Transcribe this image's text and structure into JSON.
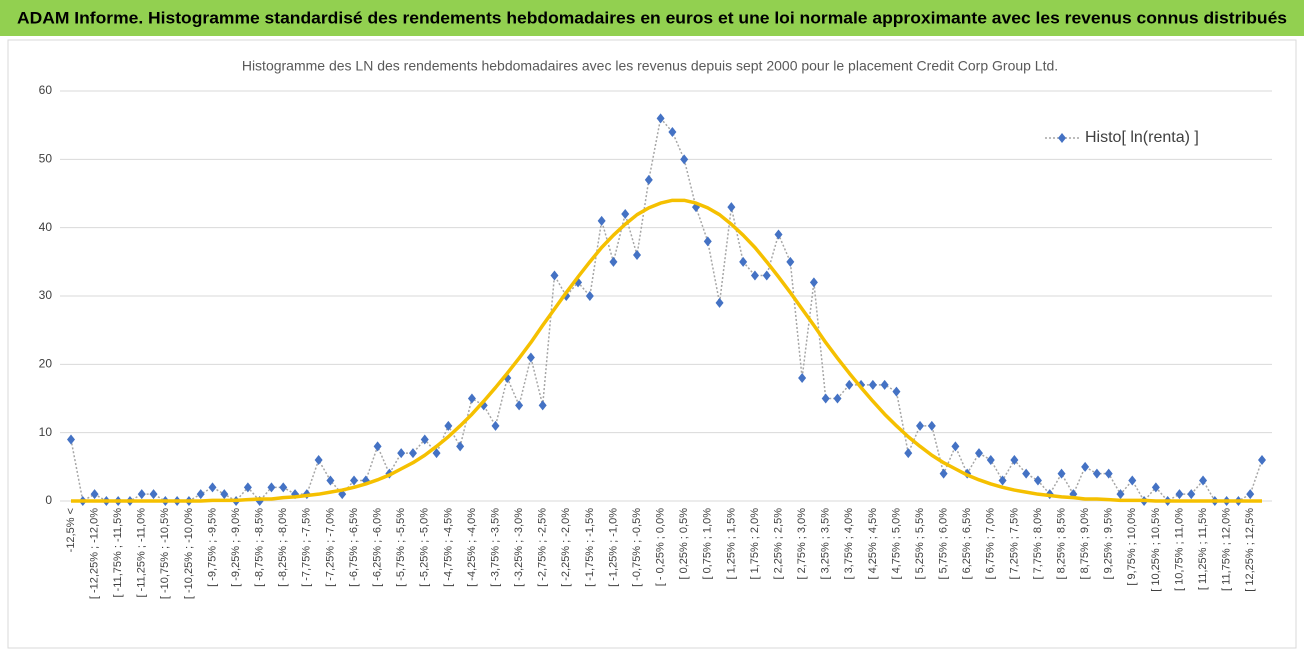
{
  "chart_data": {
    "type": "line",
    "title": "ADAM Informe. Histogramme standardisé des rendements hebdomadaires en euros et une loi normale approximante avec les revenus connus distribués",
    "subtitle": "Histogramme des LN des rendements hebdomadaires avec les revenus depuis sept 2000 pour le placement Credit Corp Group Ltd.",
    "categories": [
      "-12,5% <",
      null,
      "[ -12,25% ; -12,0%",
      null,
      "[ -11,75% ; -11,5%",
      null,
      "[ -11,25% ; -11,0%",
      null,
      "[ -10,75% ; -10,5%",
      null,
      "[ -10,25% ; -10,0%",
      null,
      "[ -9,75% ; -9,5%",
      null,
      "[ -9,25% ; -9,0%",
      null,
      "[ -8,75% ; -8,5%",
      null,
      "[ -8,25% ; -8,0%",
      null,
      "[ -7,75% ; -7,5%",
      null,
      "[ -7,25% ; -7,0%",
      null,
      "[ -6,75% ; -6,5%",
      null,
      "[ -6,25% ; -6,0%",
      null,
      "[ -5,75% ; -5,5%",
      null,
      "[ -5,25% ; -5,0%",
      null,
      "[ -4,75% ; -4,5%",
      null,
      "[ -4,25% ; -4,0%",
      null,
      "[ -3,75% ; -3,5%",
      null,
      "[ -3,25% ; -3,0%",
      null,
      "[ -2,75% ; -2,5%",
      null,
      "[ -2,25% ; -2,0%",
      null,
      "[ -1,75% ; -1,5%",
      null,
      "[ -1,25% ; -1,0%",
      null,
      "[ -0,75% ; -0,5%",
      null,
      "[ - 0,25% ; 0,0%",
      null,
      "[ 0,25% ; 0,5%",
      null,
      "[ 0,75% ; 1,0%",
      null,
      "[ 1,25% ; 1,5%",
      null,
      "[ 1,75% ; 2,0%",
      null,
      "[ 2,25% ; 2,5%",
      null,
      "[ 2,75% ; 3,0%",
      null,
      "[ 3,25% ; 3,5%",
      null,
      "[ 3,75% ; 4,0%",
      null,
      "[ 4,25% ; 4,5%",
      null,
      "[ 4,75% ; 5,0%",
      null,
      "[ 5,25% ; 5,5%",
      null,
      "[ 5,75% ; 6,0%",
      null,
      "[ 6,25% ; 6,5%",
      null,
      "[ 6,75% ; 7,0%",
      null,
      "[ 7,25% ; 7,5%",
      null,
      "[ 7,75% ; 8,0%",
      null,
      "[ 8,25% ; 8,5%",
      null,
      "[ 8,75% ; 9,0%",
      null,
      "[ 9,25% ; 9,5%",
      null,
      "[ 9,75% ; 10,0%",
      null,
      "[ 10,25% ; 10,5%",
      null,
      "[ 10,75% ; 11,0%",
      null,
      "[ 11,25% ; 11,5%",
      null,
      "[ 11,75% ; 12,0%",
      null,
      "[ 12,25% ; 12,5%",
      null
    ],
    "series": [
      {
        "name": "Histo[ ln(renta) ]",
        "color": "#4472c4",
        "line_color": "#a6a6a6",
        "marker": "diamond",
        "values": [
          9,
          0,
          1,
          0,
          0,
          0,
          1,
          1,
          0,
          0,
          0,
          1,
          2,
          1,
          0,
          2,
          0,
          2,
          2,
          1,
          1,
          6,
          3,
          1,
          3,
          3,
          8,
          4,
          7,
          7,
          9,
          7,
          11,
          8,
          15,
          14,
          11,
          18,
          14,
          21,
          14,
          33,
          30,
          32,
          30,
          41,
          35,
          42,
          36,
          47,
          56,
          54,
          50,
          43,
          38,
          29,
          43,
          35,
          33,
          33,
          39,
          35,
          18,
          32,
          15,
          15,
          17,
          17,
          17,
          17,
          16,
          7,
          11,
          11,
          4,
          8,
          4,
          7,
          6,
          3,
          6,
          4,
          3,
          1,
          4,
          1,
          5,
          4,
          4,
          1,
          3,
          0,
          2,
          0,
          1,
          1,
          3,
          0,
          0,
          0,
          1,
          6
        ]
      },
      {
        "color": "#f5c000",
        "values": [
          0,
          0,
          0,
          0,
          0,
          0,
          0,
          0,
          0,
          0,
          0,
          0,
          0.1,
          0.1,
          0.1,
          0.2,
          0.3,
          0.3,
          0.5,
          0.6,
          0.8,
          1.0,
          1.3,
          1.6,
          2.0,
          2.5,
          3.1,
          3.8,
          4.7,
          5.6,
          6.7,
          8.0,
          9.4,
          11.0,
          12.7,
          14.6,
          16.6,
          18.7,
          20.9,
          23.2,
          25.7,
          28.1,
          30.5,
          32.8,
          35.0,
          37.1,
          38.9,
          40.5,
          41.9,
          42.9,
          43.6,
          44.0,
          44.0,
          43.6,
          42.9,
          41.9,
          40.5,
          38.9,
          37.1,
          35.0,
          32.8,
          30.5,
          28.1,
          25.7,
          23.2,
          20.9,
          18.7,
          16.6,
          14.6,
          12.7,
          11.0,
          9.4,
          8.0,
          6.7,
          5.6,
          4.7,
          3.8,
          3.1,
          2.5,
          2.0,
          1.6,
          1.3,
          1.0,
          0.8,
          0.6,
          0.5,
          0.3,
          0.3,
          0.2,
          0.1,
          0.1,
          0.1,
          0,
          0,
          0,
          0,
          0,
          0,
          0,
          0,
          0,
          0
        ]
      }
    ],
    "ylim": [
      0,
      60
    ],
    "yticks": [
      0,
      10,
      20,
      30,
      40,
      50,
      60
    ],
    "grid": true,
    "legend": "upper right"
  }
}
